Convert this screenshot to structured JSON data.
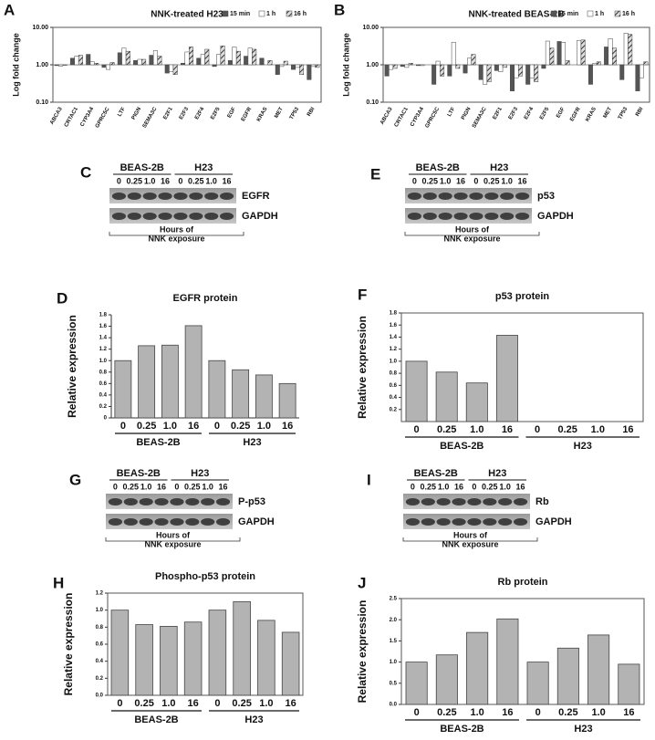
{
  "chart_data": [
    {
      "type": "bar",
      "panel": "A",
      "title": "NNK-treated H23",
      "y_label": "Log fold change",
      "log": true,
      "legend": "upper right",
      "frame": true,
      "categories": [
        "ABCA3",
        "CRTAC1",
        "CYP3A4",
        "GPRC5C",
        "LTF",
        "PIGN",
        "SEMA3C",
        "E2F1",
        "E2F3",
        "E2F4",
        "E2F5",
        "EGF",
        "EGFR",
        "KRAS",
        "MET",
        "TP53",
        "RBI"
      ],
      "series": [
        {
          "name": "15 min",
          "color": "#555555",
          "values": [
            0.95,
            1.5,
            1.9,
            0.85,
            2.1,
            1.3,
            1.8,
            0.6,
            1.1,
            1.5,
            0.9,
            1.3,
            1.7,
            1.5,
            0.55,
            0.75,
            0.4
          ]
        },
        {
          "name": "1 h",
          "color": "#ffffff",
          "values": [
            0.92,
            1.7,
            1.2,
            0.75,
            2.8,
            1.4,
            2.4,
            0.65,
            2.2,
            1.9,
            1.9,
            3.0,
            2.8,
            1.0,
            0.9,
            0.85,
            0.9
          ]
        },
        {
          "name": "16 h",
          "color": "#9a9a9a",
          "pattern": "hatch",
          "values": [
            0.97,
            1.8,
            1.1,
            1.15,
            2.3,
            1.4,
            1.7,
            0.55,
            3.0,
            2.6,
            3.2,
            2.3,
            2.6,
            1.3,
            1.25,
            0.55,
            0.85
          ]
        }
      ],
      "ylim": [
        0.1,
        10
      ],
      "yticks": [
        {
          "value": 0.1,
          "label": "0.10"
        },
        {
          "value": 1,
          "label": "1.00"
        },
        {
          "value": 10,
          "label": "10.00"
        }
      ]
    },
    {
      "type": "bar",
      "panel": "B",
      "title": "NNK-treated BEAS-2B",
      "y_label": "Log fold change",
      "log": true,
      "legend": "upper right",
      "frame": true,
      "categories": [
        "ABCA3",
        "CRTAC1",
        "CYP3A4",
        "GPRC5C",
        "LTF",
        "PIGN",
        "SEMA3C",
        "E2F1",
        "E2F3",
        "E2F4",
        "E2F5",
        "EGF",
        "EGFR",
        "KRAS",
        "MET",
        "TP53",
        "RBI"
      ],
      "series": [
        {
          "name": "15 min",
          "color": "#555555",
          "values": [
            0.5,
            0.9,
            0.95,
            0.3,
            0.5,
            0.6,
            0.4,
            0.7,
            0.2,
            0.3,
            0.8,
            4.2,
            1.0,
            0.3,
            3.0,
            0.4,
            0.2
          ]
        },
        {
          "name": "1 h",
          "color": "#ffffff",
          "values": [
            0.75,
            0.85,
            0.95,
            1.25,
            4.0,
            1.5,
            0.3,
            0.65,
            0.45,
            0.45,
            4.3,
            4.0,
            4.5,
            1.1,
            5.0,
            7.0,
            0.45
          ]
        },
        {
          "name": "16 h",
          "color": "#9a9a9a",
          "pattern": "hatch",
          "values": [
            0.8,
            1.1,
            1.0,
            0.5,
            0.8,
            1.9,
            0.35,
            0.85,
            0.5,
            0.35,
            2.8,
            1.3,
            4.6,
            1.2,
            2.8,
            6.5,
            1.2
          ]
        }
      ],
      "ylim": [
        0.1,
        10
      ],
      "yticks": [
        {
          "value": 0.1,
          "label": "0.10"
        },
        {
          "value": 1,
          "label": "1.00"
        },
        {
          "value": 10,
          "label": "10.00"
        }
      ]
    },
    {
      "type": "bar",
      "panel": "D",
      "title": "EGFR protein",
      "y_label": "Relative expression",
      "color": "#b3b3b3",
      "frame": false,
      "categories": [
        "0",
        "0.25",
        "1.0",
        "16",
        "0",
        "0.25",
        "1.0",
        "16"
      ],
      "groups": [
        "BEAS-2B",
        "H23"
      ],
      "values": [
        1.0,
        1.26,
        1.27,
        1.61,
        1.0,
        0.84,
        0.75,
        0.6
      ],
      "ylim": [
        0,
        1.8
      ],
      "yticks": [
        0,
        0.2,
        0.4,
        0.6,
        0.8,
        {
          "value": 1,
          "label": "1.0"
        },
        1.2,
        1.4,
        1.6,
        1.8
      ]
    },
    {
      "type": "bar",
      "panel": "F",
      "title": "p53 protein",
      "y_label": "Relative expression",
      "color": "#b3b3b3",
      "frame": true,
      "categories": [
        "0",
        "0.25",
        "1.0",
        "16",
        "0",
        "0.25",
        "1.0",
        "16"
      ],
      "groups": [
        "BEAS-2B",
        "H23"
      ],
      "values": [
        1.0,
        0.82,
        0.64,
        1.43,
        0,
        0,
        0,
        0
      ],
      "ylim": [
        0,
        1.8
      ],
      "yticks": [
        0.2,
        0.4,
        0.6,
        0.8,
        {
          "value": 1,
          "label": "1.0"
        },
        1.2,
        1.4,
        1.6,
        1.8
      ]
    },
    {
      "type": "bar",
      "panel": "H",
      "title": "Phospho-p53 protein",
      "y_label": "Relative expression",
      "color": "#b3b3b3",
      "frame": true,
      "categories": [
        "0",
        "0.25",
        "1.0",
        "16",
        "0",
        "0.25",
        "1.0",
        "16"
      ],
      "groups": [
        "BEAS-2B",
        "H23"
      ],
      "values": [
        1.0,
        0.83,
        0.81,
        0.86,
        1.0,
        1.1,
        0.88,
        0.74
      ],
      "ylim": [
        0,
        1.2
      ],
      "yticks": [
        {
          "value": 0,
          "label": "0.0"
        },
        0.2,
        0.4,
        0.6,
        0.8,
        {
          "value": 1,
          "label": "1.0"
        },
        1.2
      ]
    },
    {
      "type": "bar",
      "panel": "J",
      "title": "Rb protein",
      "y_label": "Relative expression",
      "color": "#b3b3b3",
      "frame": true,
      "categories": [
        "0",
        "0.25",
        "1.0",
        "16",
        "0",
        "0.25",
        "1.0",
        "16"
      ],
      "groups": [
        "BEAS-2B",
        "H23"
      ],
      "values": [
        1.0,
        1.17,
        1.7,
        2.02,
        1.0,
        1.33,
        1.64,
        0.95
      ],
      "ylim": [
        0,
        2.5
      ],
      "yticks": [
        {
          "value": 0,
          "label": "0.0"
        },
        0.5,
        {
          "value": 1,
          "label": "1.0"
        },
        1.5,
        {
          "value": 2,
          "label": "2.0"
        },
        2.5
      ]
    }
  ],
  "blots": [
    {
      "panel": "C",
      "cell_lines": [
        "BEAS-2B",
        "H23"
      ],
      "lanes": [
        "0",
        "0.25",
        "1.0",
        "16",
        "0",
        "0.25",
        "1.0",
        "16"
      ],
      "bands": [
        "EGFR",
        "GAPDH"
      ],
      "caption": [
        "Hours of",
        "NNK exposure"
      ]
    },
    {
      "panel": "E",
      "cell_lines": [
        "BEAS-2B",
        "H23"
      ],
      "lanes": [
        "0",
        "0.25",
        "1.0",
        "16",
        "0",
        "0.25",
        "1.0",
        "16"
      ],
      "bands": [
        "p53",
        "GAPDH"
      ],
      "caption": [
        "Hours of",
        "NNK exposure"
      ]
    },
    {
      "panel": "G",
      "cell_lines": [
        "BEAS-2B",
        "H23"
      ],
      "lanes": [
        "0",
        "0.25",
        "1.0",
        "16",
        "0",
        "0.25",
        "1.0",
        "16"
      ],
      "bands": [
        "P-p53",
        "GAPDH"
      ],
      "caption": [
        "Hours of",
        "NNK exposure"
      ]
    },
    {
      "panel": "I",
      "cell_lines": [
        "BEAS-2B",
        "H23"
      ],
      "lanes": [
        "0",
        "0.25",
        "1.0",
        "16",
        "0",
        "0.25",
        "1.0",
        "16"
      ],
      "bands": [
        "Rb",
        "GAPDH"
      ],
      "caption": [
        "Hours of",
        "NNK exposure"
      ]
    }
  ]
}
